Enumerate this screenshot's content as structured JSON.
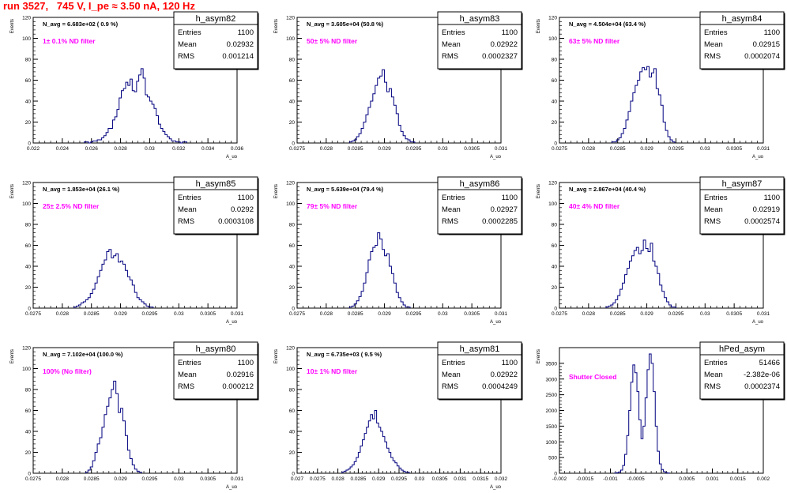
{
  "title": "run 3527,   745 V, I_pe ≈ 3.50 nA, 120 Hz",
  "chart_data": [
    {
      "type": "bar",
      "name": "h_asym82",
      "navg": "N_avg = 6.683e+02 ( 0.9 %)",
      "filter_label": "1± 0.1% ND filter",
      "stats": {
        "Entries": "1100",
        "Mean": "0.02932",
        "RMS": "0.001214"
      },
      "ylabel": "Events",
      "xlabel": "A_uo",
      "xlim": [
        0.022,
        0.036
      ],
      "ylim": [
        0,
        120
      ],
      "xticks": [
        "0.022",
        "0.024",
        "0.026",
        "0.028",
        "0.03",
        "0.032",
        "0.034",
        "0.036"
      ],
      "yticks": [
        "0",
        "20",
        "40",
        "60",
        "80",
        "100",
        "120"
      ],
      "bin_start": 0.0255,
      "bin_width": 0.00015,
      "values": [
        1,
        1,
        0,
        1,
        2,
        2,
        3,
        3,
        5,
        7,
        10,
        14,
        14,
        22,
        25,
        32,
        43,
        50,
        52,
        58,
        55,
        61,
        50,
        49,
        59,
        65,
        71,
        62,
        46,
        44,
        40,
        37,
        33,
        26,
        18,
        14,
        11,
        8,
        6,
        4,
        2,
        2,
        1,
        1,
        0,
        1,
        1
      ]
    },
    {
      "type": "bar",
      "name": "h_asym83",
      "navg": "N_avg = 3.605e+04 (50.8 %)",
      "filter_label": "50± 5% ND filter",
      "stats": {
        "Entries": "1100",
        "Mean": "0.02922",
        "RMS": "0.0002327"
      },
      "ylabel": "Events",
      "xlabel": "A_uo",
      "xlim": [
        0.0275,
        0.031
      ],
      "ylim": [
        0,
        120
      ],
      "xticks": [
        "0.0275",
        "0.028",
        "0.0285",
        "0.029",
        "0.0295",
        "0.03",
        "0.0305",
        "0.031"
      ],
      "yticks": [
        "0",
        "20",
        "40",
        "60",
        "80",
        "100",
        "120"
      ],
      "bin_start": 0.0284,
      "bin_width": 4e-05,
      "values": [
        1,
        2,
        3,
        6,
        9,
        14,
        20,
        27,
        34,
        40,
        47,
        55,
        62,
        64,
        70,
        58,
        49,
        52,
        44,
        36,
        28,
        17,
        11,
        7,
        4,
        3,
        1,
        1
      ]
    },
    {
      "type": "bar",
      "name": "h_asym84",
      "navg": "N_avg = 4.504e+04 (63.4 %)",
      "filter_label": "63± 5% ND filter",
      "stats": {
        "Entries": "1100",
        "Mean": "0.02915",
        "RMS": "0.0002074"
      },
      "ylabel": "Events",
      "xlabel": "A_uo",
      "xlim": [
        0.0275,
        0.031
      ],
      "ylim": [
        0,
        120
      ],
      "xticks": [
        "0.0275",
        "0.028",
        "0.0285",
        "0.029",
        "0.0295",
        "0.03",
        "0.0305",
        "0.031"
      ],
      "yticks": [
        "0",
        "20",
        "40",
        "60",
        "80",
        "100",
        "120"
      ],
      "bin_start": 0.0284,
      "bin_width": 4e-05,
      "values": [
        1,
        1,
        3,
        5,
        9,
        14,
        22,
        30,
        40,
        48,
        55,
        60,
        68,
        72,
        70,
        73,
        63,
        67,
        71,
        52,
        46,
        36,
        20,
        12,
        6,
        3,
        1
      ]
    },
    {
      "type": "bar",
      "name": "h_asym85",
      "navg": "N_avg = 1.853e+04 (26.1 %)",
      "filter_label": "25± 2.5% ND filter",
      "stats": {
        "Entries": "1100",
        "Mean": "0.0292",
        "RMS": "0.0003108"
      },
      "ylabel": "Events",
      "xlabel": "A_uo",
      "xlim": [
        0.0275,
        0.031
      ],
      "ylim": [
        0,
        120
      ],
      "xticks": [
        "0.0275",
        "0.028",
        "0.0285",
        "0.029",
        "0.0295",
        "0.03",
        "0.0305",
        "0.031"
      ],
      "yticks": [
        "0",
        "20",
        "40",
        "60",
        "80",
        "100",
        "120"
      ],
      "bin_start": 0.0282,
      "bin_width": 4e-05,
      "values": [
        1,
        2,
        3,
        5,
        6,
        8,
        10,
        14,
        18,
        24,
        30,
        36,
        42,
        46,
        54,
        56,
        48,
        50,
        52,
        44,
        45,
        42,
        36,
        30,
        27,
        22,
        15,
        10,
        8,
        6,
        4,
        2,
        1,
        1
      ]
    },
    {
      "type": "bar",
      "name": "h_asym86",
      "navg": "N_avg = 5.639e+04 (79.4 %)",
      "filter_label": "79± 5% ND filter",
      "stats": {
        "Entries": "1100",
        "Mean": "0.02927",
        "RMS": "0.0002285"
      },
      "ylabel": "Events",
      "xlabel": "A_uo",
      "xlim": [
        0.0275,
        0.031
      ],
      "ylim": [
        0,
        120
      ],
      "xticks": [
        "0.0275",
        "0.028",
        "0.0285",
        "0.029",
        "0.0295",
        "0.03",
        "0.0305",
        "0.031"
      ],
      "yticks": [
        "0",
        "20",
        "40",
        "60",
        "80",
        "100",
        "120"
      ],
      "bin_start": 0.0284,
      "bin_width": 4e-05,
      "values": [
        1,
        2,
        4,
        7,
        11,
        16,
        24,
        34,
        46,
        54,
        58,
        60,
        72,
        66,
        56,
        50,
        52,
        40,
        33,
        24,
        15,
        10,
        6,
        3,
        1,
        1
      ]
    },
    {
      "type": "bar",
      "name": "h_asym87",
      "navg": "N_avg = 2.867e+04 (40.4 %)",
      "filter_label": "40± 4% ND filter",
      "stats": {
        "Entries": "1100",
        "Mean": "0.02919",
        "RMS": "0.0002574"
      },
      "ylabel": "Events",
      "xlabel": "A_uo",
      "xlim": [
        0.0275,
        0.031
      ],
      "ylim": [
        0,
        120
      ],
      "xticks": [
        "0.0275",
        "0.028",
        "0.0285",
        "0.029",
        "0.0295",
        "0.03",
        "0.0305",
        "0.031"
      ],
      "yticks": [
        "0",
        "20",
        "40",
        "60",
        "80",
        "100",
        "120"
      ],
      "bin_start": 0.0283,
      "bin_width": 4e-05,
      "values": [
        1,
        2,
        3,
        5,
        8,
        12,
        18,
        24,
        32,
        38,
        45,
        50,
        55,
        58,
        52,
        55,
        65,
        57,
        54,
        62,
        45,
        40,
        33,
        22,
        16,
        10,
        6,
        3,
        1,
        1
      ]
    },
    {
      "type": "bar",
      "name": "h_asym80",
      "navg": "N_avg = 7.102e+04 (100.0 %)",
      "filter_label": "100% (No filter)",
      "stats": {
        "Entries": "1100",
        "Mean": "0.02916",
        "RMS": "0.000212"
      },
      "ylabel": "Events",
      "xlabel": "A_uo",
      "xlim": [
        0.0275,
        0.031
      ],
      "ylim": [
        0,
        120
      ],
      "xticks": [
        "0.0275",
        "0.028",
        "0.0285",
        "0.029",
        "0.0295",
        "0.03",
        "0.0305",
        "0.031"
      ],
      "yticks": [
        "0",
        "20",
        "40",
        "60",
        "80",
        "100",
        "120"
      ],
      "bin_start": 0.0284,
      "bin_width": 4e-05,
      "values": [
        1,
        3,
        6,
        12,
        20,
        28,
        34,
        44,
        56,
        64,
        72,
        80,
        88,
        76,
        58,
        62,
        50,
        36,
        22,
        14,
        8,
        4,
        2,
        1
      ]
    },
    {
      "type": "bar",
      "name": "h_asym81",
      "navg": "N_avg = 6.735e+03 ( 9.5 %)",
      "filter_label": "10± 1% ND filter",
      "stats": {
        "Entries": "1100",
        "Mean": "0.02922",
        "RMS": "0.0004249"
      },
      "ylabel": "Events",
      "xlabel": "A_uo",
      "xlim": [
        0.027,
        0.032
      ],
      "ylim": [
        0,
        120
      ],
      "xticks": [
        "0.027",
        "0.0275",
        "0.028",
        "0.0285",
        "0.029",
        "0.0295",
        "0.03",
        "0.0305",
        "0.031",
        "0.0315",
        "0.032"
      ],
      "yticks": [
        "0",
        "20",
        "40",
        "60",
        "80",
        "100",
        "120"
      ],
      "bin_start": 0.0281,
      "bin_width": 5e-05,
      "values": [
        1,
        2,
        3,
        4,
        6,
        8,
        11,
        15,
        20,
        26,
        32,
        38,
        44,
        50,
        56,
        52,
        60,
        48,
        44,
        40,
        35,
        30,
        24,
        20,
        15,
        12,
        10,
        7,
        5,
        3,
        2,
        1,
        1
      ]
    },
    {
      "type": "bar",
      "name": "hPed_asym",
      "navg": "",
      "filter_label": "Shutter Closed",
      "stats": {
        "Entries": "51466",
        "Mean": "-2.382e-06",
        "RMS": "0.0002374"
      },
      "ylabel": "Events",
      "xlabel": "",
      "xlim": [
        -0.002,
        0.002
      ],
      "ylim": [
        0,
        4000
      ],
      "xticks": [
        "-0.002",
        "-0.0015",
        "-0.001",
        "-0.0005",
        "0",
        "0.0005",
        "0.001",
        "0.0015",
        "0.002"
      ],
      "yticks": [
        "0",
        "500",
        "1000",
        "1500",
        "2000",
        "2500",
        "3000",
        "3500"
      ],
      "bin_start": -0.00092,
      "bin_width": 4e-05,
      "values": [
        5,
        15,
        40,
        100,
        250,
        600,
        1200,
        2000,
        2900,
        3450,
        3200,
        2600,
        1700,
        1100,
        1500,
        2400,
        3300,
        3800,
        3500,
        2600,
        1500,
        700,
        300,
        120,
        50,
        15,
        5
      ]
    }
  ]
}
